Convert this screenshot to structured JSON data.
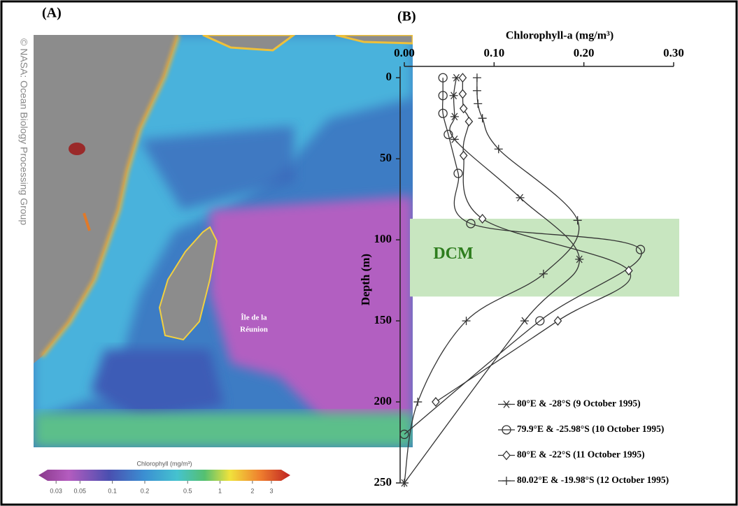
{
  "panel_a": {
    "label": "(A)",
    "credit": "© NASA: Ocean Biology Processing Group",
    "place_label": [
      "Île de la",
      "Réunion"
    ],
    "colorbar": {
      "title": "Chlorophyll (mg/m³)",
      "ticks": [
        0.03,
        0.05,
        0.1,
        0.2,
        0.5,
        1,
        2,
        3
      ],
      "lim": [
        0.025,
        3.7
      ],
      "log_scale": true
    }
  },
  "chart_data": {
    "type": "line",
    "panel_label": "(B)",
    "xlabel": "Chlorophyll-a (mg/m³)",
    "ylabel": "Depth (m)",
    "xlim": [
      0,
      0.3
    ],
    "xticks": [
      {
        "value": 0,
        "label": "0.00"
      },
      {
        "value": 0.1,
        "label": "0.10"
      },
      {
        "value": 0.2,
        "label": "0.20"
      },
      {
        "value": 0.3,
        "label": "0.30"
      }
    ],
    "ylim": [
      -7,
      250
    ],
    "yticks": [
      0,
      50,
      100,
      150,
      200,
      250
    ],
    "y_inverted": true,
    "x_axis_position": "top",
    "band": {
      "label": "DCM",
      "y": [
        87,
        135
      ],
      "color": "#c8e6c0",
      "label_color": "#2e7d1e"
    },
    "legend": "lower right",
    "series": [
      {
        "name": "80°E & -28°S (9 October 1995)",
        "marker": "asterisk",
        "color": "#333333",
        "x": [
          0.058,
          0.055,
          0.056,
          0.056,
          0.129,
          0.195,
          0.134,
          0.0
        ],
        "y": [
          0,
          11,
          24,
          38,
          74,
          112,
          150,
          250
        ]
      },
      {
        "name": "79.9°E & -25.98°S (10 October 1995)",
        "marker": "circle",
        "color": "#333333",
        "x": [
          0.043,
          0.043,
          0.043,
          0.049,
          0.06,
          0.074,
          0.263,
          0.151,
          0.0
        ],
        "y": [
          0,
          11,
          22,
          35,
          59,
          90,
          106,
          150,
          220
        ]
      },
      {
        "name": "80°E & -22°S (11 October 1995)",
        "marker": "diamond",
        "color": "#333333",
        "x": [
          0.065,
          0.065,
          0.066,
          0.072,
          0.066,
          0.087,
          0.25,
          0.171,
          0.035
        ],
        "y": [
          0,
          10,
          19,
          27,
          48,
          87,
          119,
          150,
          200
        ]
      },
      {
        "name": "80.02°E & -19.98°S (12 October 1995)",
        "marker": "plus",
        "color": "#333333",
        "x": [
          0.081,
          0.081,
          0.082,
          0.087,
          0.105,
          0.193,
          0.155,
          0.069,
          0.015,
          0.0
        ],
        "y": [
          0,
          8,
          16,
          25,
          44,
          88,
          121,
          150,
          200,
          250
        ]
      }
    ]
  }
}
